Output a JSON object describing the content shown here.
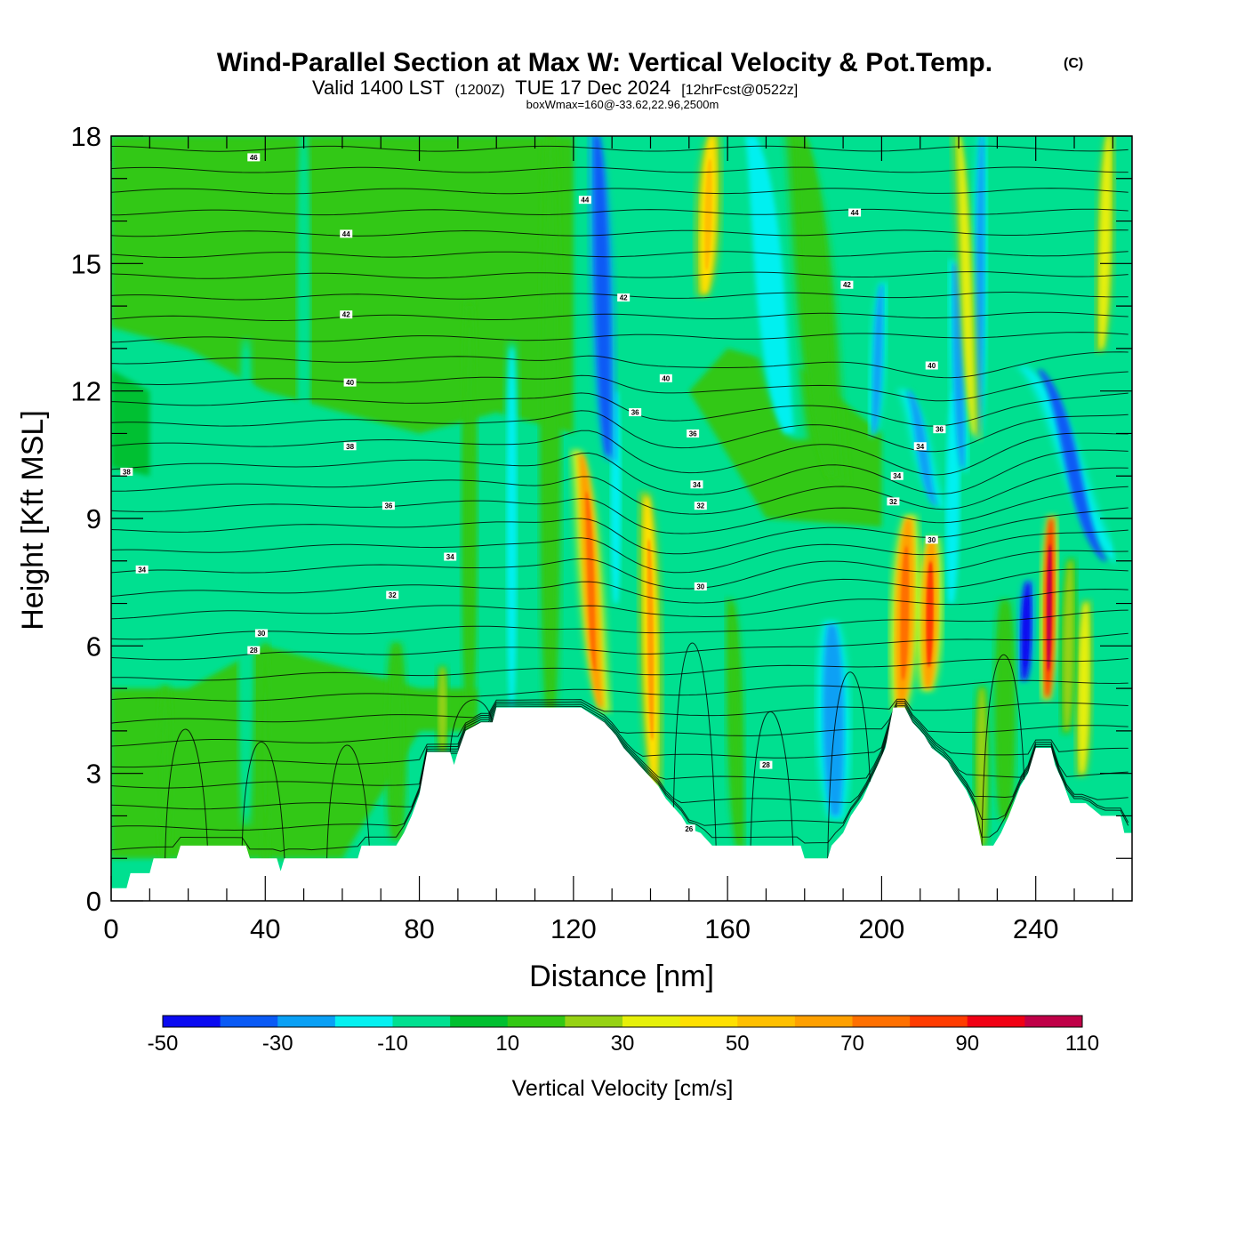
{
  "chart_data": {
    "type": "heatmap",
    "title": "Wind-Parallel Section at Max W: Vertical Velocity & Pot.Temp.",
    "copyright": "(C)",
    "subtitle_main": "Valid 1400 LST",
    "subtitle_utc": "(1200Z)",
    "subtitle_date": "TUE 17 Dec 2024",
    "subtitle_fcst": "[12hrFcst@0522z]",
    "subtitle_box": "boxWmax=160@-33.62,22.96,2500m",
    "xlabel": "Distance [nm]",
    "ylabel": "Height [Kft MSL]",
    "xlim": [
      0,
      265
    ],
    "ylim": [
      0,
      18
    ],
    "x_ticks": [
      0,
      40,
      80,
      120,
      160,
      200,
      240
    ],
    "x_tick_labels": [
      "0",
      "40",
      "80",
      "120",
      "160",
      "200",
      "240"
    ],
    "y_ticks": [
      0,
      3,
      6,
      9,
      12,
      15,
      18
    ],
    "y_tick_labels": [
      "0",
      "3",
      "6",
      "9",
      "12",
      "15",
      "18"
    ],
    "colorbar": {
      "title": "Vertical Velocity [cm/s]",
      "bounds": [
        -50,
        -40,
        -30,
        -20,
        -10,
        0,
        10,
        20,
        30,
        40,
        50,
        60,
        70,
        80,
        90,
        100,
        110
      ],
      "labels": [
        "-50",
        "-30",
        "-10",
        "10",
        "30",
        "50",
        "70",
        "90",
        "110"
      ],
      "colors": [
        "#0a0af0",
        "#0a5af5",
        "#0aa0f5",
        "#05f0f0",
        "#00e090",
        "#00c030",
        "#33c814",
        "#96d214",
        "#e6f00a",
        "#ffe000",
        "#ffc000",
        "#ffa000",
        "#ff7000",
        "#ff3c00",
        "#f00014",
        "#c00048"
      ]
    },
    "background_color": "#00e090",
    "terrain_kft": [
      [
        0,
        0.3
      ],
      [
        4,
        0.3
      ],
      [
        5,
        0.65
      ],
      [
        10,
        0.65
      ],
      [
        11,
        1.0
      ],
      [
        17,
        1.0
      ],
      [
        18,
        1.3
      ],
      [
        35,
        1.3
      ],
      [
        36,
        1.0
      ],
      [
        43,
        1.0
      ],
      [
        44,
        0.7
      ],
      [
        45,
        1.0
      ],
      [
        64,
        1.0
      ],
      [
        65,
        1.3
      ],
      [
        74,
        1.3
      ],
      [
        76,
        1.6
      ],
      [
        78,
        2.0
      ],
      [
        80,
        2.5
      ],
      [
        81,
        3.0
      ],
      [
        82,
        3.5
      ],
      [
        88,
        3.5
      ],
      [
        89,
        3.2
      ],
      [
        90,
        3.5
      ],
      [
        92,
        4.0
      ],
      [
        96,
        4.2
      ],
      [
        99,
        4.2
      ],
      [
        100,
        4.55
      ],
      [
        120,
        4.55
      ],
      [
        122,
        4.55
      ],
      [
        128,
        4.2
      ],
      [
        131,
        3.9
      ],
      [
        133,
        3.6
      ],
      [
        136,
        3.3
      ],
      [
        139,
        3.0
      ],
      [
        142,
        2.7
      ],
      [
        144,
        2.4
      ],
      [
        146,
        2.2
      ],
      [
        148,
        2.0
      ],
      [
        150,
        1.7
      ],
      [
        153,
        1.6
      ],
      [
        156,
        1.3
      ],
      [
        170,
        1.3
      ],
      [
        179,
        1.3
      ],
      [
        180,
        1.0
      ],
      [
        186,
        1.0
      ],
      [
        187,
        1.3
      ],
      [
        190,
        1.6
      ],
      [
        192,
        2.0
      ],
      [
        195,
        2.4
      ],
      [
        198,
        3.0
      ],
      [
        201,
        3.6
      ],
      [
        203,
        4.55
      ],
      [
        206,
        4.55
      ],
      [
        208,
        4.2
      ],
      [
        211,
        3.9
      ],
      [
        213,
        3.6
      ],
      [
        217,
        3.3
      ],
      [
        219,
        3.0
      ],
      [
        222,
        2.6
      ],
      [
        224,
        2.2
      ],
      [
        226,
        1.3
      ],
      [
        229,
        1.3
      ],
      [
        231,
        1.6
      ],
      [
        233,
        2.0
      ],
      [
        236,
        2.7
      ],
      [
        238,
        3.0
      ],
      [
        240,
        3.6
      ],
      [
        244,
        3.6
      ],
      [
        245,
        3.2
      ],
      [
        247,
        2.8
      ],
      [
        249,
        2.3
      ],
      [
        253,
        2.3
      ],
      [
        257,
        2.0
      ],
      [
        262,
        2.0
      ],
      [
        263,
        1.6
      ],
      [
        265,
        1.6
      ]
    ],
    "contour_labels": [
      {
        "text": "46",
        "x": 37,
        "y": 17.5
      },
      {
        "text": "44",
        "x": 61,
        "y": 15.7
      },
      {
        "text": "44",
        "x": 123,
        "y": 16.5
      },
      {
        "text": "44",
        "x": 193,
        "y": 16.2
      },
      {
        "text": "42",
        "x": 61,
        "y": 13.8
      },
      {
        "text": "42",
        "x": 133,
        "y": 14.2
      },
      {
        "text": "42",
        "x": 191,
        "y": 14.5
      },
      {
        "text": "40",
        "x": 62,
        "y": 12.2
      },
      {
        "text": "40",
        "x": 144,
        "y": 12.3
      },
      {
        "text": "40",
        "x": 213,
        "y": 12.6
      },
      {
        "text": "38",
        "x": 4,
        "y": 10.1
      },
      {
        "text": "38",
        "x": 62,
        "y": 10.7
      },
      {
        "text": "36",
        "x": 136,
        "y": 11.5
      },
      {
        "text": "36",
        "x": 151,
        "y": 11.0
      },
      {
        "text": "36",
        "x": 72,
        "y": 9.3
      },
      {
        "text": "36",
        "x": 215,
        "y": 11.1
      },
      {
        "text": "34",
        "x": 8,
        "y": 7.8
      },
      {
        "text": "34",
        "x": 88,
        "y": 8.1
      },
      {
        "text": "34",
        "x": 152,
        "y": 9.8
      },
      {
        "text": "34",
        "x": 210,
        "y": 10.7
      },
      {
        "text": "34",
        "x": 204,
        "y": 10.0
      },
      {
        "text": "32",
        "x": 73,
        "y": 7.2
      },
      {
        "text": "32",
        "x": 153,
        "y": 9.3
      },
      {
        "text": "32",
        "x": 203,
        "y": 9.4
      },
      {
        "text": "30",
        "x": 39,
        "y": 6.3
      },
      {
        "text": "30",
        "x": 153,
        "y": 7.4
      },
      {
        "text": "30",
        "x": 213,
        "y": 8.5
      },
      {
        "text": "28",
        "x": 37,
        "y": 5.9
      },
      {
        "text": "28",
        "x": 170,
        "y": 3.2
      },
      {
        "text": "26",
        "x": 150,
        "y": 1.7
      }
    ],
    "features": [
      {
        "kind": "vstreak",
        "x": 114,
        "y": [
          4.55,
          18
        ],
        "width": 4,
        "value": 15
      },
      {
        "kind": "vstreak",
        "x": 104,
        "y": [
          4.55,
          13
        ],
        "width": 3,
        "value": -12
      },
      {
        "kind": "vstreak",
        "x": 93,
        "y": [
          4.55,
          14
        ],
        "width": 3,
        "value": 12
      },
      {
        "kind": "vstreak",
        "x": 50,
        "y": [
          9,
          18
        ],
        "width": 2.5,
        "value": -8
      },
      {
        "kind": "vstreak",
        "x": 35,
        "y": [
          2,
          13
        ],
        "width": 3,
        "value": -10
      },
      {
        "kind": "vstreak",
        "x": 40,
        "y": [
          1,
          6
        ],
        "width": 2,
        "value": 12
      },
      {
        "kind": "vstreak",
        "x": 14,
        "y": [
          1,
          5
        ],
        "width": 3,
        "value": 12
      },
      {
        "kind": "vstreak",
        "x": 74,
        "y": [
          1.5,
          6
        ],
        "width": 4,
        "value": 15
      },
      {
        "kind": "vstreak",
        "x": 86,
        "y": [
          3.5,
          5.5
        ],
        "width": 2.5,
        "value": 22
      },
      {
        "kind": "vstreak",
        "x": 131,
        "y": [
          7,
          12
        ],
        "width": 3,
        "value": -12
      },
      {
        "kind": "plume",
        "x": [
          122,
          127
        ],
        "y": [
          10.5,
          4.55
        ],
        "width": 4,
        "value": 60
      },
      {
        "kind": "plume",
        "x": [
          139,
          141
        ],
        "y": [
          9.5,
          2.8
        ],
        "width": 4,
        "value": 45
      },
      {
        "kind": "plume",
        "x": [
          126,
          129
        ],
        "y": [
          18,
          10.5
        ],
        "width": 4,
        "value": -38
      },
      {
        "kind": "plume",
        "x": [
          156,
          154
        ],
        "y": [
          18,
          14.3
        ],
        "width": 4.5,
        "value": 42
      },
      {
        "kind": "plume",
        "x": [
          166,
          176
        ],
        "y": [
          18,
          11
        ],
        "width": 8,
        "value": -12
      },
      {
        "kind": "plume",
        "x": [
          179,
          187
        ],
        "y": [
          18,
          10
        ],
        "width": 7,
        "value": 12
      },
      {
        "kind": "plume",
        "x": [
          187,
          188
        ],
        "y": [
          6.5,
          2
        ],
        "width": 6,
        "value": -25
      },
      {
        "kind": "plume",
        "x": [
          161,
          163
        ],
        "y": [
          7,
          1.3
        ],
        "width": 3,
        "value": 12
      },
      {
        "kind": "plume",
        "x": [
          219,
          218
        ],
        "y": [
          12,
          7
        ],
        "width": 4,
        "value": -12
      },
      {
        "kind": "plume",
        "x": [
          200,
          198
        ],
        "y": [
          14.5,
          11
        ],
        "width": 2.5,
        "value": -28
      },
      {
        "kind": "plume",
        "x": [
          207,
          205
        ],
        "y": [
          9,
          4.55
        ],
        "width": 5,
        "value": 60
      },
      {
        "kind": "plume",
        "x": [
          213,
          212
        ],
        "y": [
          8.5,
          5
        ],
        "width": 4.5,
        "value": 65
      },
      {
        "kind": "plume",
        "x": [
          207,
          214
        ],
        "y": [
          12,
          9.3
        ],
        "width": 3,
        "value": -22
      },
      {
        "kind": "plume",
        "x": [
          219,
          221
        ],
        "y": [
          15,
          10.2
        ],
        "width": 3,
        "value": -25
      },
      {
        "kind": "plume",
        "x": [
          226,
          225
        ],
        "y": [
          18,
          11
        ],
        "width": 2.5,
        "value": -25
      },
      {
        "kind": "plume",
        "x": [
          220,
          224
        ],
        "y": [
          18,
          11
        ],
        "width": 2.5,
        "value": 38
      },
      {
        "kind": "plume",
        "x": [
          241,
          258
        ],
        "y": [
          12.5,
          8
        ],
        "width": 4,
        "value": -35
      },
      {
        "kind": "plume",
        "x": [
          238,
          237
        ],
        "y": [
          7.5,
          5.2
        ],
        "width": 3,
        "value": -48
      },
      {
        "kind": "plume",
        "x": [
          244,
          243
        ],
        "y": [
          9,
          4.8
        ],
        "width": 3,
        "value": 85
      },
      {
        "kind": "plume",
        "x": [
          253,
          252
        ],
        "y": [
          7,
          3
        ],
        "width": 3,
        "value": 38
      },
      {
        "kind": "plume",
        "x": [
          249,
          248
        ],
        "y": [
          8,
          4
        ],
        "width": 3,
        "value": 22
      },
      {
        "kind": "plume",
        "x": [
          259,
          257
        ],
        "y": [
          18,
          13
        ],
        "width": 3,
        "value": 38
      },
      {
        "kind": "plume",
        "x": [
          262,
          263
        ],
        "y": [
          10,
          7
        ],
        "width": 3,
        "value": -8
      },
      {
        "kind": "plume",
        "x": [
          232,
          232
        ],
        "y": [
          7,
          2
        ],
        "width": 4,
        "value": 14
      },
      {
        "kind": "plume",
        "x": [
          226,
          226
        ],
        "y": [
          5,
          1.3
        ],
        "width": 3,
        "value": 25
      }
    ]
  }
}
